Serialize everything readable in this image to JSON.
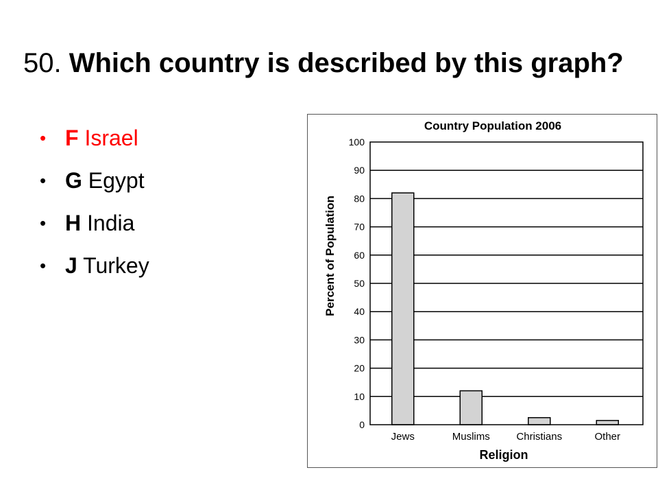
{
  "slide": {
    "number": "50.",
    "question": "Which country is described by this graph?"
  },
  "options": [
    {
      "letter": "F",
      "text": "Israel",
      "correct": true
    },
    {
      "letter": "G",
      "text": "Egypt",
      "correct": false
    },
    {
      "letter": "H",
      "text": "India",
      "correct": false
    },
    {
      "letter": "J",
      "text": "Turkey",
      "correct": false
    }
  ],
  "colors": {
    "correct_answer": "#ff0000",
    "bar_fill": "#d3d3d3",
    "bar_stroke": "#000000",
    "gridline": "#000000"
  },
  "chart_data": {
    "type": "bar",
    "title": "Country Population 2006",
    "xlabel": "Religion",
    "ylabel": "Percent of Population",
    "categories": [
      "Jews",
      "Muslims",
      "Christians",
      "Other"
    ],
    "values": [
      82,
      12,
      2.5,
      1.5
    ],
    "ylim": [
      0,
      100
    ],
    "yticks": [
      0,
      10,
      20,
      30,
      40,
      50,
      60,
      70,
      80,
      90,
      100
    ],
    "grid": true,
    "legend": "none"
  }
}
